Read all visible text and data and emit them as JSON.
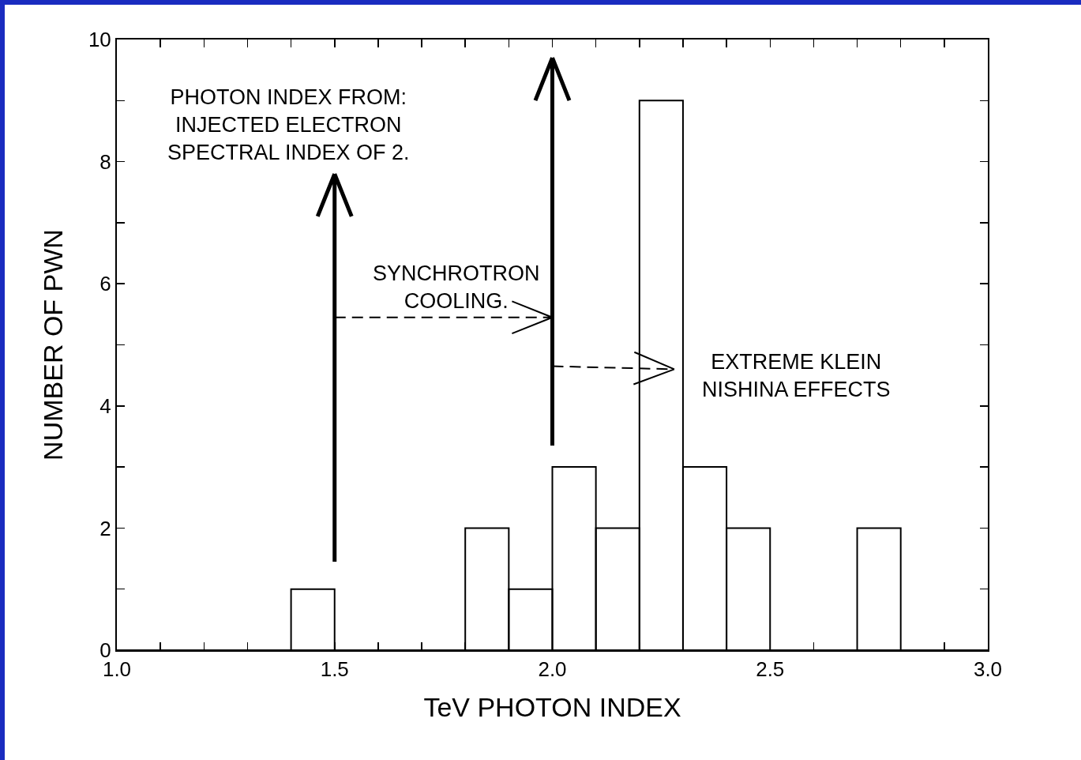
{
  "chart_data": {
    "type": "histogram",
    "xlabel": "TeV PHOTON INDEX",
    "ylabel": "NUMBER OF PWN",
    "bins": [
      1.0,
      1.1,
      1.2,
      1.3,
      1.4,
      1.5,
      1.6,
      1.7,
      1.8,
      1.9,
      2.0,
      2.1,
      2.2,
      2.3,
      2.4,
      2.5,
      2.6,
      2.7,
      2.8,
      2.9,
      3.0
    ],
    "values": [
      0,
      0,
      0,
      0,
      1,
      0,
      0,
      0,
      2,
      1,
      3,
      2,
      9,
      3,
      2,
      0,
      0,
      2,
      0,
      0
    ],
    "color": "#000000",
    "xlim": [
      1.0,
      3.0
    ],
    "xticks": [
      {
        "value": 1.0,
        "label": "1.0"
      },
      {
        "value": 1.1,
        "label": null
      },
      {
        "value": 1.2,
        "label": null
      },
      {
        "value": 1.3,
        "label": null
      },
      {
        "value": 1.4,
        "label": null
      },
      1.5,
      {
        "value": 1.6,
        "label": null
      },
      {
        "value": 1.7,
        "label": null
      },
      {
        "value": 1.8,
        "label": null
      },
      {
        "value": 1.9,
        "label": null
      },
      {
        "value": 2.0,
        "label": "2.0"
      },
      {
        "value": 2.1,
        "label": null
      },
      {
        "value": 2.2,
        "label": null
      },
      {
        "value": 2.3,
        "label": null
      },
      {
        "value": 2.4,
        "label": null
      },
      2.5,
      {
        "value": 2.6,
        "label": null
      },
      {
        "value": 2.7,
        "label": null
      },
      {
        "value": 2.8,
        "label": null
      },
      {
        "value": 2.9,
        "label": null
      },
      {
        "value": 3.0,
        "label": "3.0"
      }
    ],
    "ylim": [
      0,
      10
    ],
    "yticks": [
      0,
      {
        "value": 1,
        "label": null
      },
      2,
      {
        "value": 3,
        "label": null
      },
      4,
      {
        "value": 5,
        "label": null
      },
      6,
      {
        "value": 7,
        "label": null
      },
      8,
      {
        "value": 9,
        "label": null
      },
      10
    ],
    "grid": false,
    "legend": false,
    "annotations": [
      "PHOTON INDEX FROM:\nINJECTED ELECTRON\nSPECTRAL INDEX OF 2.",
      "SYNCHROTRON\nCOOLING.",
      "EXTREME KLEIN\nNISHINA EFFECTS"
    ]
  }
}
